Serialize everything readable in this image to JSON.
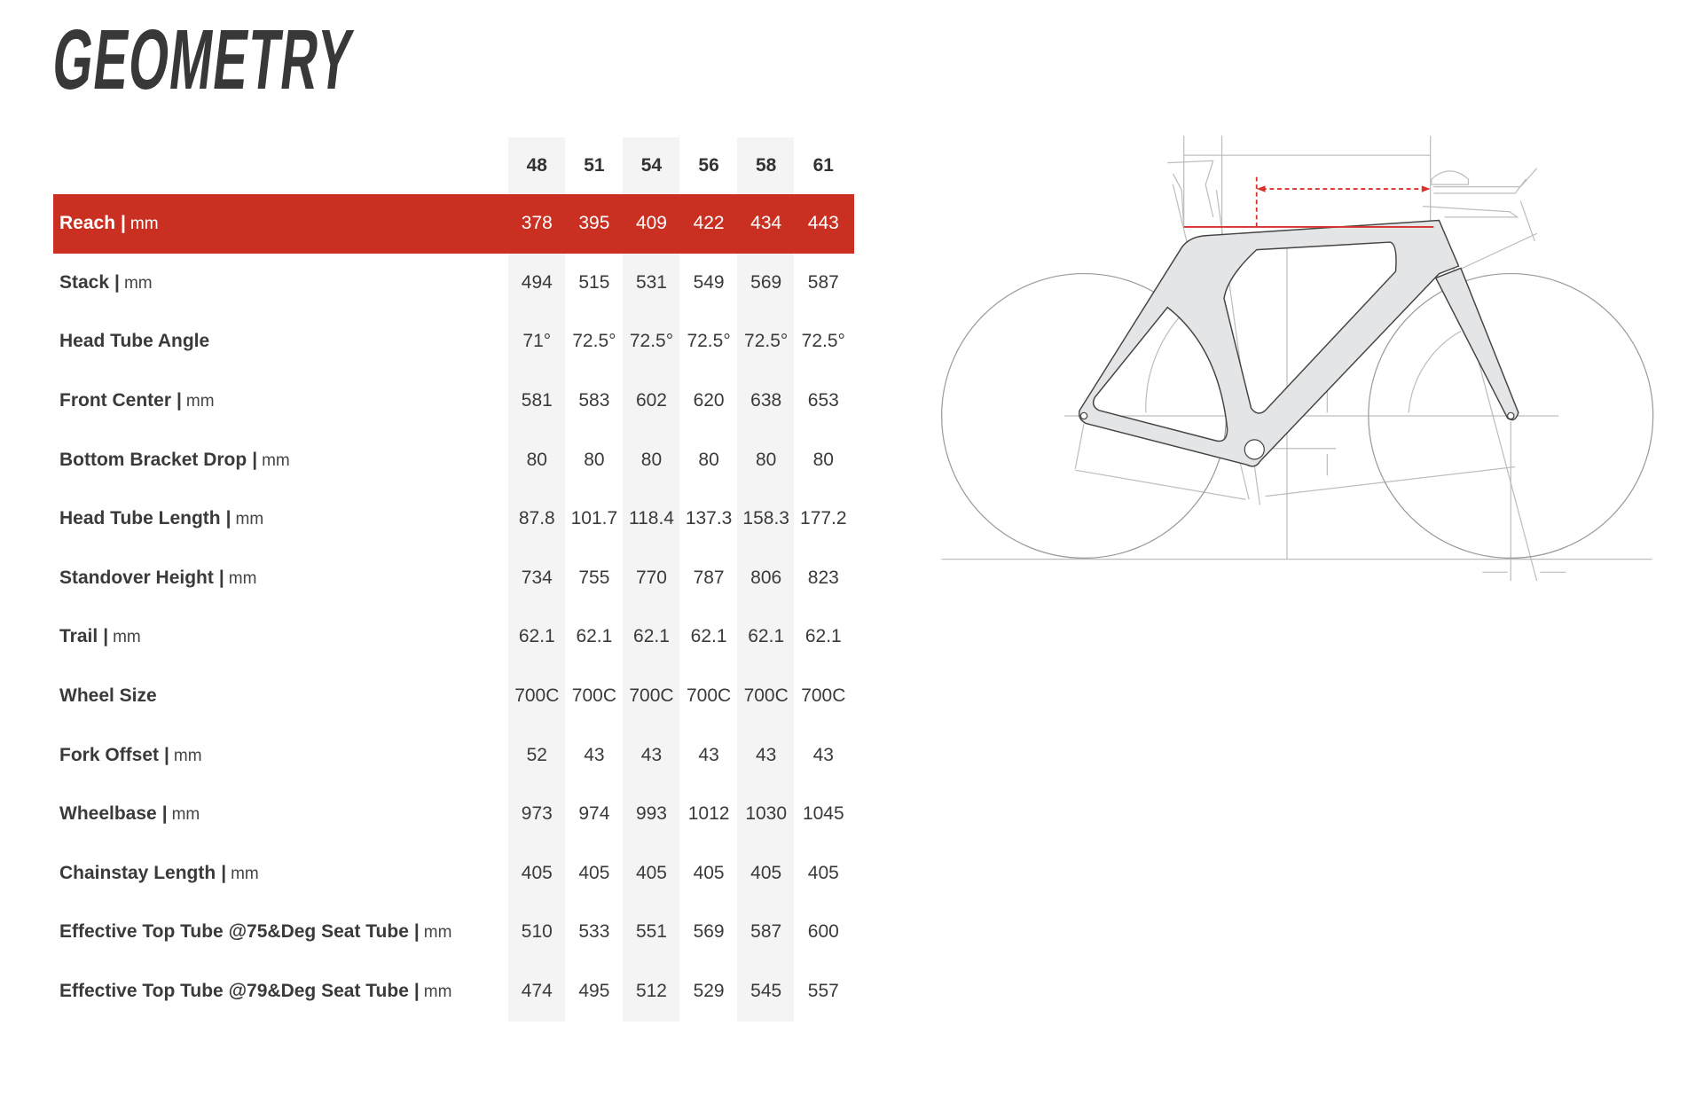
{
  "title": "GEOMETRY",
  "sizes": [
    "48",
    "51",
    "54",
    "56",
    "58",
    "61"
  ],
  "highlight_color": "#c93022",
  "rows": [
    {
      "label": "Reach",
      "separator": "|",
      "unit": "mm",
      "values": [
        "378",
        "395",
        "409",
        "422",
        "434",
        "443"
      ],
      "highlighted": true
    },
    {
      "label": "Stack",
      "separator": "|",
      "unit": "mm",
      "values": [
        "494",
        "515",
        "531",
        "549",
        "569",
        "587"
      ]
    },
    {
      "label": "Head Tube Angle",
      "separator": "",
      "unit": "",
      "values": [
        "71°",
        "72.5°",
        "72.5°",
        "72.5°",
        "72.5°",
        "72.5°"
      ]
    },
    {
      "label": "Front Center",
      "separator": "|",
      "unit": "mm",
      "values": [
        "581",
        "583",
        "602",
        "620",
        "638",
        "653"
      ]
    },
    {
      "label": "Bottom Bracket Drop",
      "separator": "|",
      "unit": "mm",
      "values": [
        "80",
        "80",
        "80",
        "80",
        "80",
        "80"
      ]
    },
    {
      "label": "Head Tube Length",
      "separator": "|",
      "unit": "mm",
      "values": [
        "87.8",
        "101.7",
        "118.4",
        "137.3",
        "158.3",
        "177.2"
      ]
    },
    {
      "label": "Standover Height",
      "separator": "|",
      "unit": "mm",
      "values": [
        "734",
        "755",
        "770",
        "787",
        "806",
        "823"
      ]
    },
    {
      "label": "Trail",
      "separator": "|",
      "unit": "mm",
      "values": [
        "62.1",
        "62.1",
        "62.1",
        "62.1",
        "62.1",
        "62.1"
      ]
    },
    {
      "label": "Wheel Size",
      "separator": "",
      "unit": "",
      "values": [
        "700C",
        "700C",
        "700C",
        "700C",
        "700C",
        "700C"
      ]
    },
    {
      "label": "Fork Offset",
      "separator": "|",
      "unit": "mm",
      "values": [
        "52",
        "43",
        "43",
        "43",
        "43",
        "43"
      ]
    },
    {
      "label": "Wheelbase",
      "separator": "|",
      "unit": "mm",
      "values": [
        "973",
        "974",
        "993",
        "1012",
        "1030",
        "1045"
      ]
    },
    {
      "label": "Chainstay Length",
      "separator": "|",
      "unit": "mm",
      "values": [
        "405",
        "405",
        "405",
        "405",
        "405",
        "405"
      ]
    },
    {
      "label": "Effective Top Tube @75&Deg Seat Tube",
      "separator": "|",
      "unit": "mm",
      "values": [
        "510",
        "533",
        "551",
        "569",
        "587",
        "600"
      ]
    },
    {
      "label": "Effective Top Tube @79&Deg Seat Tube",
      "separator": "|",
      "unit": "mm",
      "values": [
        "474",
        "495",
        "512",
        "529",
        "545",
        "557"
      ]
    }
  ]
}
